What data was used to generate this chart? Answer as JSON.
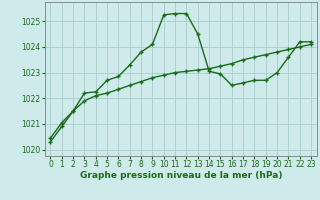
{
  "x": [
    0,
    1,
    2,
    3,
    4,
    5,
    6,
    7,
    8,
    9,
    10,
    11,
    12,
    13,
    14,
    15,
    16,
    17,
    18,
    19,
    20,
    21,
    22,
    23
  ],
  "line1": [
    1020.3,
    1020.9,
    1021.5,
    1022.2,
    1022.25,
    1022.7,
    1022.85,
    1023.3,
    1023.8,
    1024.1,
    1025.25,
    1025.3,
    1025.3,
    1024.5,
    1023.05,
    1022.95,
    1022.5,
    1022.6,
    1022.7,
    1022.7,
    1023.0,
    1023.6,
    1024.2,
    1024.2
  ],
  "line2": [
    1020.45,
    1021.05,
    1021.5,
    1021.9,
    1022.1,
    1022.2,
    1022.35,
    1022.5,
    1022.65,
    1022.8,
    1022.9,
    1023.0,
    1023.05,
    1023.1,
    1023.15,
    1023.25,
    1023.35,
    1023.5,
    1023.6,
    1023.7,
    1023.8,
    1023.9,
    1024.0,
    1024.1
  ],
  "line_color": "#1a6b1a",
  "bg_color": "#ceeaea",
  "grid_color": "#a8cccc",
  "xlabel": "Graphe pression niveau de la mer (hPa)",
  "ylim": [
    1019.75,
    1025.75
  ],
  "xlim": [
    -0.5,
    23.5
  ],
  "yticks": [
    1020,
    1021,
    1022,
    1023,
    1024,
    1025
  ],
  "xticks": [
    0,
    1,
    2,
    3,
    4,
    5,
    6,
    7,
    8,
    9,
    10,
    11,
    12,
    13,
    14,
    15,
    16,
    17,
    18,
    19,
    20,
    21,
    22,
    23
  ],
  "xlabel_fontsize": 6.5,
  "tick_fontsize": 5.5,
  "linewidth": 1.0,
  "markersize": 3.5
}
